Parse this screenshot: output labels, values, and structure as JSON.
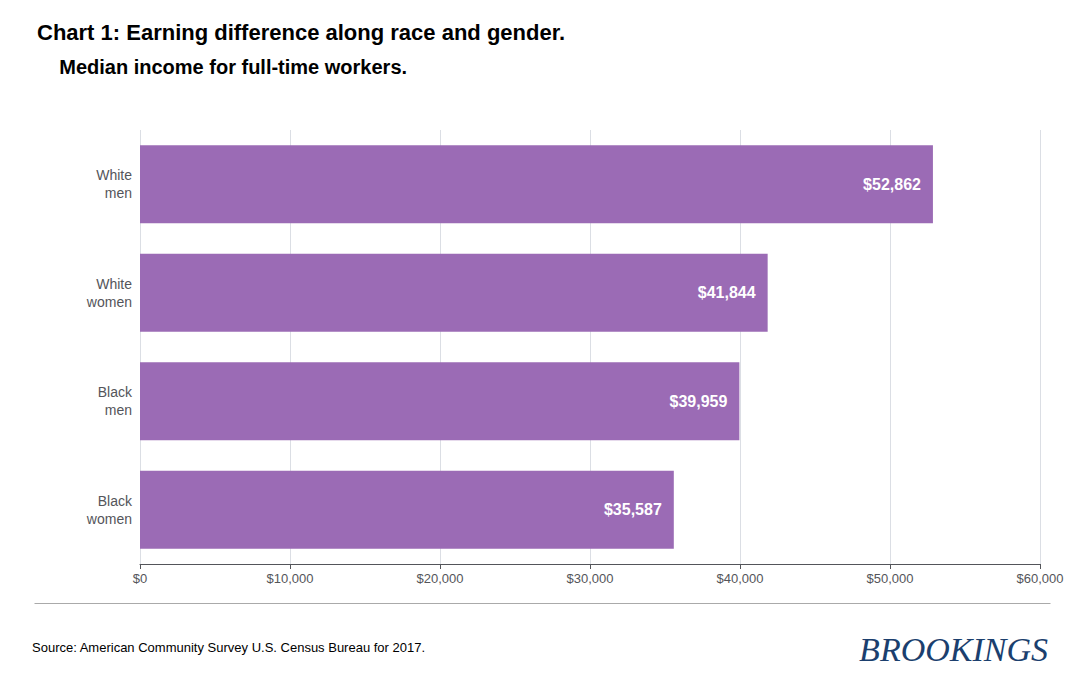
{
  "chart_data": {
    "type": "bar",
    "orientation": "horizontal",
    "title": "Chart 1: Earning difference along race and gender.",
    "subtitle": "    Median income for full-time workers.",
    "categories": [
      "White\nmen",
      "White\nwomen",
      "Black\nmen",
      "Black\nwomen"
    ],
    "values": [
      52862,
      41844,
      39959,
      35587
    ],
    "value_labels": [
      "$52,862",
      "$41,844",
      "$39,959",
      "$35,587"
    ],
    "data_labels": true,
    "color": "#9b6bb5",
    "xlim": [
      0,
      60000
    ],
    "xticks": [
      {
        "value": 0,
        "label": "$0"
      },
      {
        "value": 10000,
        "label": "$10,000"
      },
      {
        "value": 20000,
        "label": "$20,000"
      },
      {
        "value": 30000,
        "label": "$30,000"
      },
      {
        "value": 40000,
        "label": "$40,000"
      },
      {
        "value": 50000,
        "label": "$50,000"
      },
      {
        "value": 60000,
        "label": "$60,000"
      }
    ],
    "grid": true,
    "annotations": [
      "Source: American Community Survey U.S. Census Bureau for 2017.",
      "BROOKINGS"
    ]
  }
}
